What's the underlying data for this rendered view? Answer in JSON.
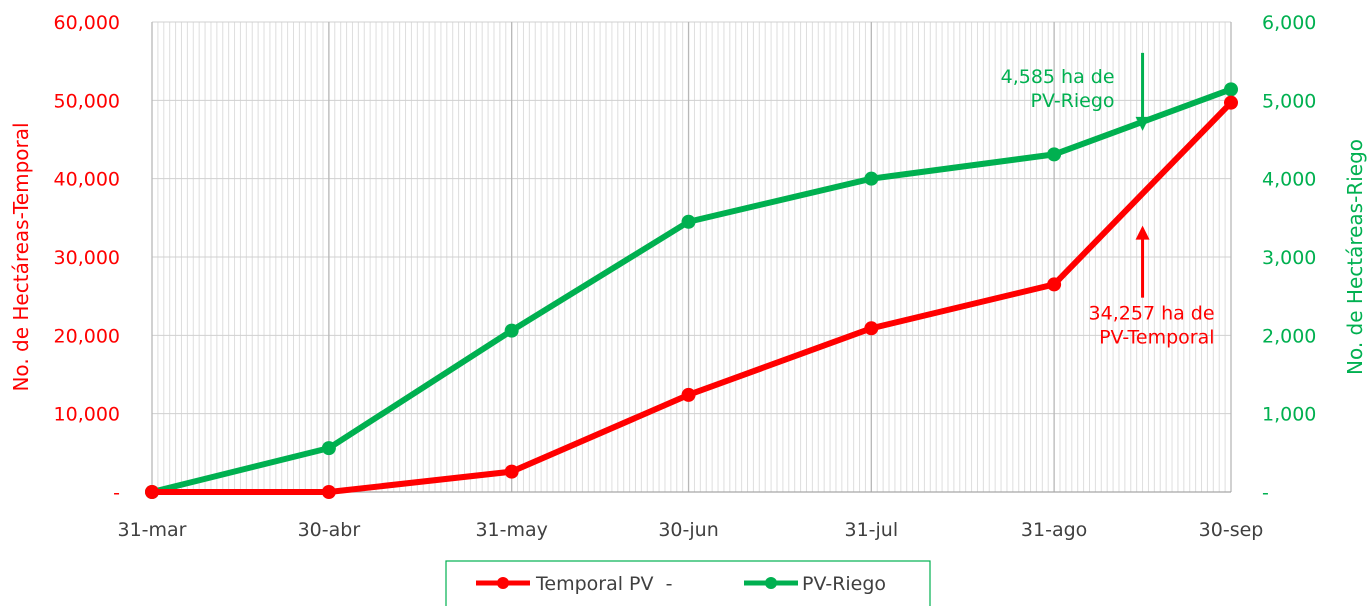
{
  "chart_data": {
    "type": "line",
    "categories": [
      "31-mar",
      "30-abr",
      "31-may",
      "30-jun",
      "31-jul",
      "31-ago",
      "30-sep"
    ],
    "category_dates": [
      "2024-03-31",
      "2024-04-30",
      "2024-05-31",
      "2024-06-30",
      "2024-07-31",
      "2024-08-31",
      "2024-09-30"
    ],
    "series": [
      {
        "name": "Temporal PV  -",
        "axis": "left",
        "color": "#ff0000",
        "values": [
          0,
          0,
          2600,
          12400,
          20900,
          26500,
          49700
        ]
      },
      {
        "name": "PV-Riego",
        "axis": "right",
        "color": "#00b050",
        "values": [
          0,
          560,
          2060,
          3450,
          4000,
          4310,
          5140
        ]
      }
    ],
    "y_left": {
      "label": "No. de Hectáreas-Temporal",
      "range": [
        0,
        60000
      ],
      "ticks": [
        "-",
        "10,000",
        "20,000",
        "30,000",
        "40,000",
        "50,000",
        "60,000"
      ],
      "color": "#ff0000"
    },
    "y_right": {
      "label": "No. de Hectáreas-Riego",
      "range": [
        0,
        6000
      ],
      "ticks": [
        "-",
        "1,000",
        "2,000",
        "3,000",
        "4,000",
        "5,000",
        "6,000"
      ],
      "color": "#00b050"
    },
    "grid": true,
    "legend_position": "bottom",
    "annotations": [
      {
        "lines": [
          "4,585 ha de",
          "PV-Riego"
        ],
        "color": "#00b050",
        "arrow": "down",
        "series": "PV-Riego",
        "x_date": "2024-09-15",
        "value": 4585
      },
      {
        "lines": [
          "34,257 ha de",
          "PV-Temporal"
        ],
        "color": "#ff0000",
        "arrow": "up",
        "series": "Temporal PV  -",
        "x_date": "2024-09-15",
        "value": 34257
      }
    ]
  }
}
